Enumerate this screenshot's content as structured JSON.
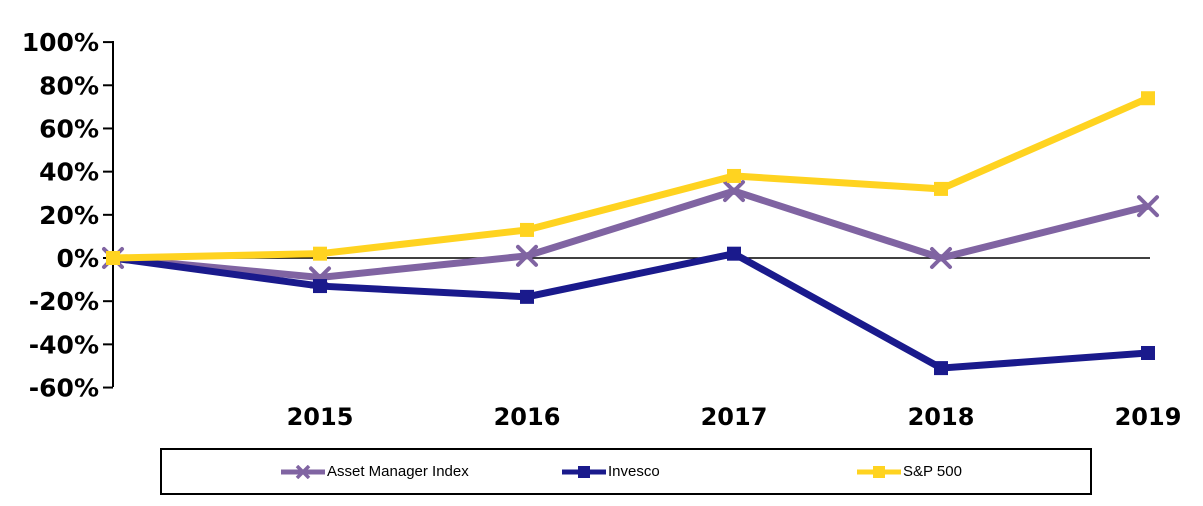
{
  "chart_data": {
    "type": "line",
    "title": "",
    "xlabel": "",
    "ylabel": "",
    "x_labels": [
      "",
      "2015",
      "2016",
      "2017",
      "2018",
      "2019"
    ],
    "y_ticks": [
      {
        "value": 100,
        "label": "100%"
      },
      {
        "value": 80,
        "label": "80%"
      },
      {
        "value": 60,
        "label": "60%"
      },
      {
        "value": 40,
        "label": "40%"
      },
      {
        "value": 20,
        "label": "20%"
      },
      {
        "value": 0,
        "label": "0%"
      },
      {
        "value": -20,
        "label": "-20%"
      },
      {
        "value": -40,
        "label": "-40%"
      },
      {
        "value": -60,
        "label": "-60%"
      }
    ],
    "ylim": [
      -60,
      100
    ],
    "grid": false,
    "zero_baseline": true,
    "legend_position": "bottom",
    "series": [
      {
        "name": "Asset Manager Index",
        "color": "#8064A2",
        "marker": "x",
        "values": [
          0,
          -9,
          1,
          31,
          0,
          24
        ]
      },
      {
        "name": "Invesco",
        "color": "#1A1A8C",
        "marker": "square",
        "values": [
          0,
          -13,
          -18,
          2,
          -51,
          -44
        ]
      },
      {
        "name": "S&P 500",
        "color": "#FFD320",
        "marker": "square",
        "values": [
          0,
          2,
          13,
          38,
          32,
          74
        ]
      }
    ]
  }
}
